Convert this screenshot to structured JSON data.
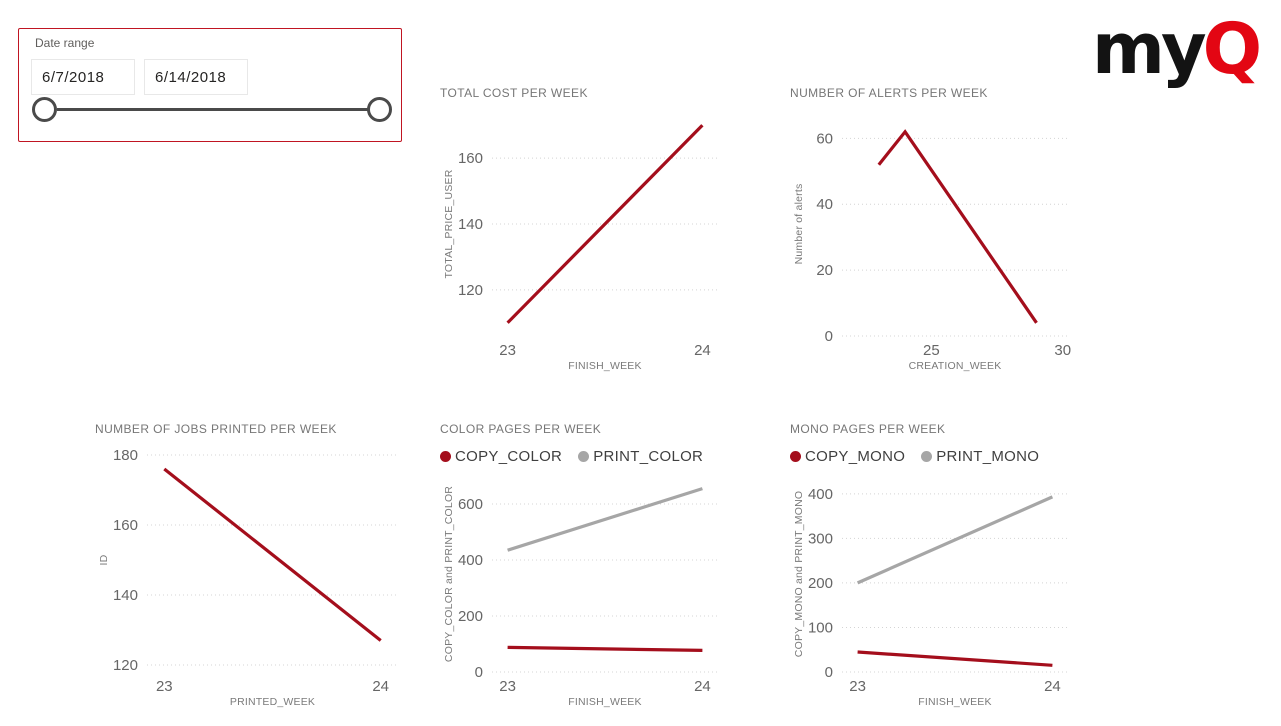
{
  "colors": {
    "line_red": "#a40e1c",
    "line_gray": "#a6a6a6",
    "logo_black": "#131313",
    "logo_red": "#e30613",
    "slicer_border": "#c01522",
    "title_text": "#767676",
    "tick_text": "#666666",
    "grid": "#d4d4d4",
    "legend_text": "#3f3f3f",
    "slider": "#4a4a4a"
  },
  "slicer": {
    "label": "Date range",
    "start_value": "6/7/2018",
    "end_value": "6/14/2018"
  },
  "logo": {
    "prefix": "my",
    "suffix": "Q"
  },
  "chart_data": [
    {
      "type": "line",
      "title": "TOTAL COST PER WEEK",
      "xlabel": "FINISH_WEEK",
      "ylabel": "TOTAL_PRICE_USER",
      "xlim": [
        22.92,
        24.08
      ],
      "ylim": [
        106,
        174
      ],
      "xticks": [
        23,
        24
      ],
      "yticks": [
        120,
        140,
        160
      ],
      "grid": "dotted",
      "legend": false,
      "series": [
        {
          "name": "TOTAL_PRICE_USER",
          "color": "#a40e1c",
          "x": [
            23,
            24
          ],
          "y": [
            110,
            170
          ]
        }
      ]
    },
    {
      "type": "line",
      "title": "NUMBER OF ALERTS PER WEEK",
      "xlabel": "CREATION_WEEK",
      "ylabel": "Number of alerts",
      "xlim": [
        21.6,
        30.2
      ],
      "ylim": [
        0,
        68
      ],
      "xticks": [
        25,
        30
      ],
      "yticks": [
        0,
        20,
        40,
        60
      ],
      "grid": "dotted",
      "legend": false,
      "series": [
        {
          "name": "Number of alerts",
          "color": "#a40e1c",
          "x": [
            23,
            24,
            29
          ],
          "y": [
            52,
            62,
            4
          ]
        }
      ]
    },
    {
      "type": "line",
      "title": "NUMBER OF JOBS PRINTED PER WEEK",
      "xlabel": "PRINTED_WEEK",
      "ylabel": "ID",
      "xlim": [
        22.92,
        24.08
      ],
      "ylim": [
        118,
        182
      ],
      "xticks": [
        23,
        24
      ],
      "yticks": [
        120,
        140,
        160,
        180
      ],
      "grid": "dotted",
      "legend": false,
      "series": [
        {
          "name": "ID",
          "color": "#a40e1c",
          "x": [
            23,
            24
          ],
          "y": [
            176,
            127
          ]
        }
      ]
    },
    {
      "type": "line",
      "title": "COLOR PAGES PER WEEK",
      "xlabel": "FINISH_WEEK",
      "ylabel": "COPY_COLOR and PRINT_COLOR",
      "xlim": [
        22.92,
        24.08
      ],
      "ylim": [
        0,
        700
      ],
      "xticks": [
        23,
        24
      ],
      "yticks": [
        0,
        200,
        400,
        600
      ],
      "grid": "dotted",
      "legend": true,
      "series": [
        {
          "name": "COPY_COLOR",
          "color": "#a40e1c",
          "x": [
            23,
            24
          ],
          "y": [
            88,
            77
          ]
        },
        {
          "name": "PRINT_COLOR",
          "color": "#a6a6a6",
          "x": [
            23,
            24
          ],
          "y": [
            435,
            655
          ]
        }
      ]
    },
    {
      "type": "line",
      "title": "MONO PAGES PER WEEK",
      "xlabel": "FINISH_WEEK",
      "ylabel": "COPY_MONO and PRINT_MONO",
      "xlim": [
        22.92,
        24.08
      ],
      "ylim": [
        0,
        440
      ],
      "xticks": [
        23,
        24
      ],
      "yticks": [
        0,
        100,
        200,
        300,
        400
      ],
      "grid": "dotted",
      "legend": true,
      "series": [
        {
          "name": "COPY_MONO",
          "color": "#a40e1c",
          "x": [
            23,
            24
          ],
          "y": [
            45,
            15
          ]
        },
        {
          "name": "PRINT_MONO",
          "color": "#a6a6a6",
          "x": [
            23,
            24
          ],
          "y": [
            200,
            393
          ]
        }
      ]
    }
  ]
}
